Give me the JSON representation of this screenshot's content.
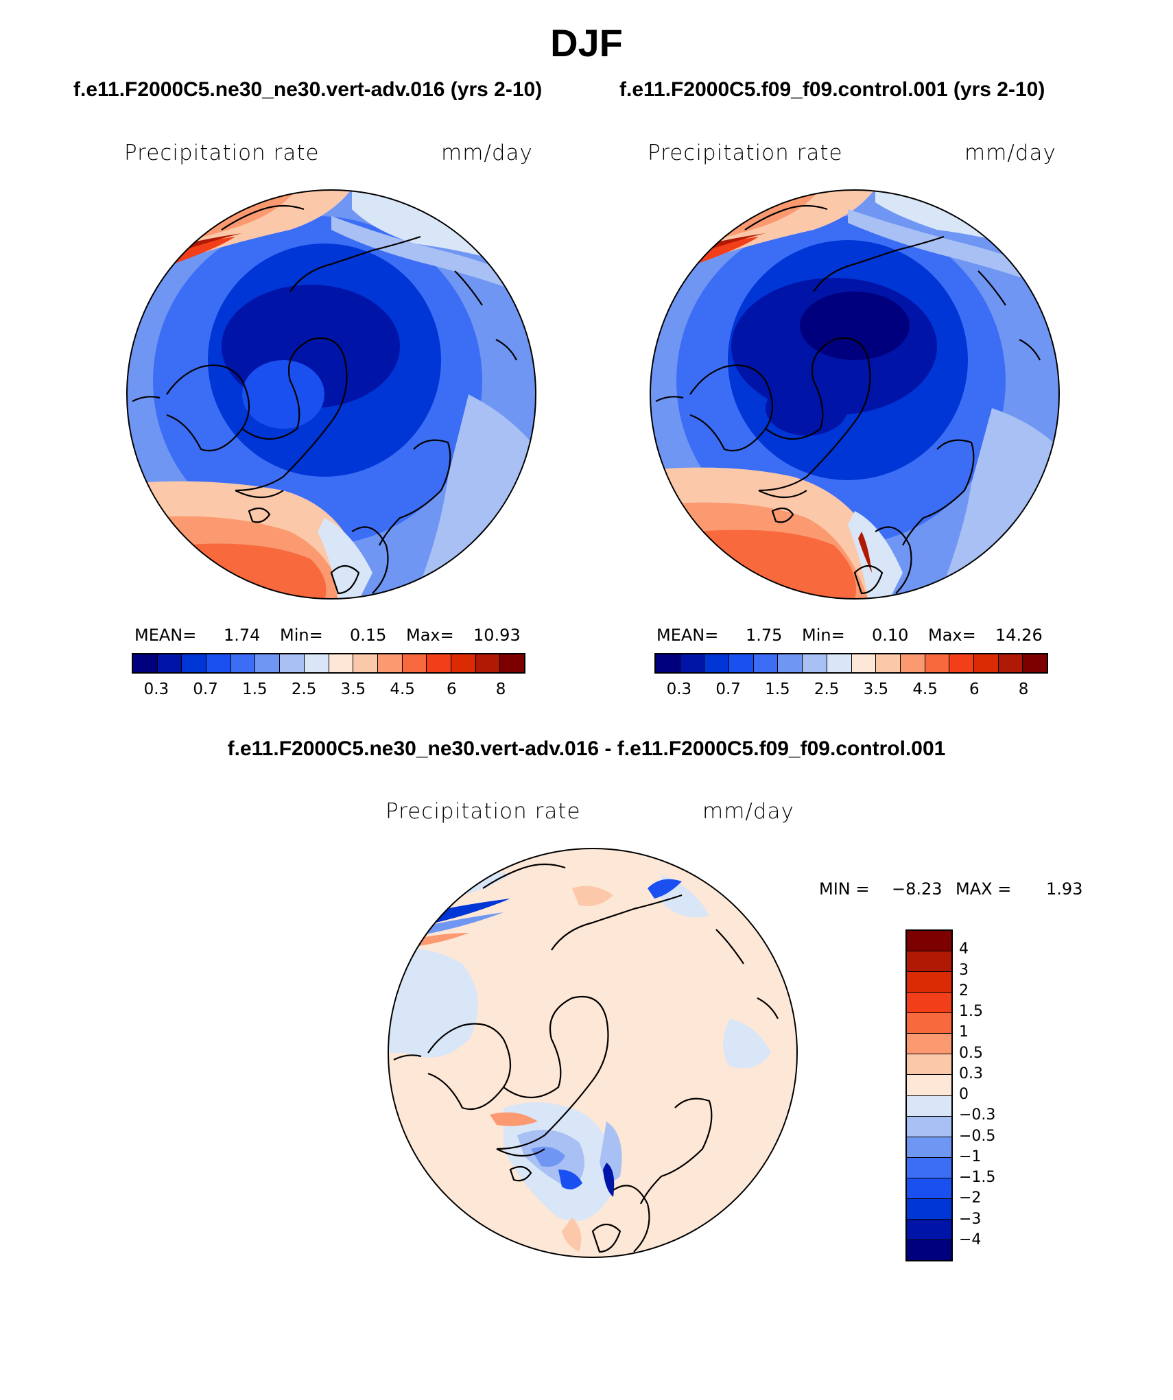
{
  "title": "DJF",
  "panels": [
    {
      "case": "f.e11.F2000C5.ne30_ne30.vert-adv.016 (yrs 2-10)",
      "variable": "Precipitation rate",
      "units": "mm/day",
      "stats": {
        "mean_label": "MEAN=",
        "mean": "1.74",
        "min_label": "Min=",
        "min": "0.15",
        "max_label": "Max=",
        "max": "10.93"
      }
    },
    {
      "case": "f.e11.F2000C5.f09_f09.control.001 (yrs 2-10)",
      "variable": "Precipitation rate",
      "units": "mm/day",
      "stats": {
        "mean_label": "MEAN=",
        "mean": "1.75",
        "min_label": "Min=",
        "min": "0.10",
        "max_label": "Max=",
        "max": "14.26"
      }
    }
  ],
  "diff_panel": {
    "case": "f.e11.F2000C5.ne30_ne30.vert-adv.016 - f.e11.F2000C5.f09_f09.control.001",
    "variable": "Precipitation rate",
    "units": "mm/day",
    "min_label": "MIN =",
    "min": "−8.23",
    "max_label": "MAX =",
    "max": "1.93"
  },
  "colorbar_abs": {
    "colors": [
      "#00007f",
      "#0015a8",
      "#0035d6",
      "#1a50f0",
      "#3c6ef5",
      "#7096f4",
      "#a8c0f3",
      "#d9e6f8",
      "#fde7d6",
      "#fcc8aa",
      "#fb9a70",
      "#f86a3e",
      "#f23f19",
      "#db2b04",
      "#b01a04",
      "#7c0000"
    ],
    "ticks": [
      "0.3",
      "0.7",
      "1.5",
      "2.5",
      "3.5",
      "4.5",
      "6",
      "8"
    ]
  },
  "colorbar_diff": {
    "colors": [
      "#7c0000",
      "#b01a04",
      "#db2b04",
      "#f23f19",
      "#f86a3e",
      "#fb9a70",
      "#fcc8aa",
      "#fde7d6",
      "#d9e6f8",
      "#a8c0f3",
      "#7096f4",
      "#3c6ef5",
      "#1a50f0",
      "#0035d6",
      "#0015a8",
      "#00007f"
    ],
    "ticks": [
      "4",
      "3",
      "2",
      "1.5",
      "1",
      "0.5",
      "0.3",
      "0",
      "−0.3",
      "−0.5",
      "−1",
      "−1.5",
      "−2",
      "−3",
      "−4"
    ]
  }
}
